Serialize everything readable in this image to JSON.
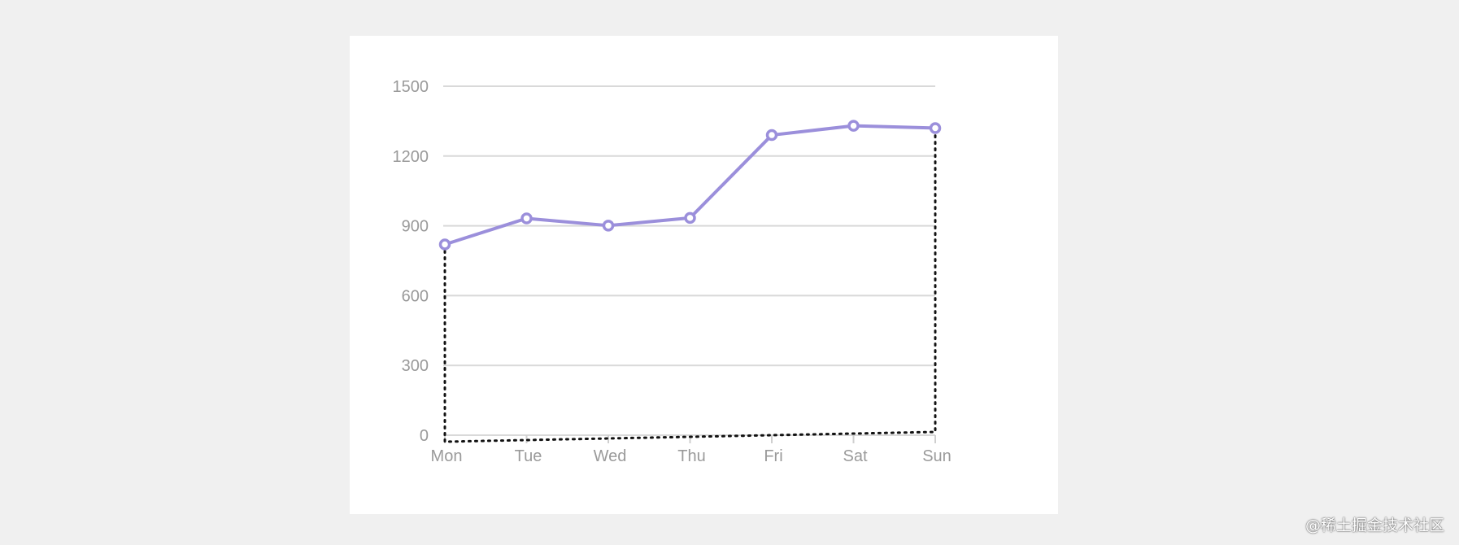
{
  "chart_data": {
    "type": "line",
    "categories": [
      "Mon",
      "Tue",
      "Wed",
      "Thu",
      "Fri",
      "Sat",
      "Sun"
    ],
    "series": [
      {
        "values": [
          820,
          932,
          901,
          934,
          1290,
          1330,
          1320
        ]
      }
    ],
    "yticks": [
      "0",
      "300",
      "600",
      "900",
      "1200",
      "1500"
    ],
    "ytick_values": [
      0,
      300,
      600,
      900,
      1200,
      1500
    ],
    "ylim": [
      0,
      1500
    ],
    "grid": true,
    "legend": "none",
    "line_color": "#9b8fdb",
    "point_color": "#9b8fdb",
    "guide_color": "#111111"
  },
  "watermark": "@稀土掘金技术社区"
}
